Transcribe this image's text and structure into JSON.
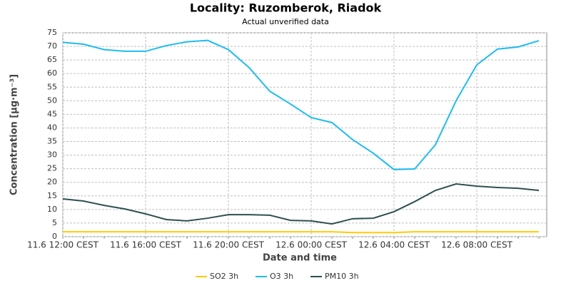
{
  "chart_data": {
    "type": "line",
    "title": "Locality: Ruzomberok, Riadok",
    "subtitle": "Actual unverified data",
    "x_label": "Date and time",
    "y_label": "Concentration [µg·m⁻³]",
    "categories": [
      "11.6 12:00 CEST",
      null,
      null,
      null,
      "11.6 16:00 CEST",
      null,
      null,
      null,
      "11.6 20:00 CEST",
      null,
      null,
      null,
      "12.6 00:00 CEST",
      null,
      null,
      null,
      "12.6 04:00 CEST",
      null,
      null,
      null,
      "12.6 08:00 CEST",
      null,
      null,
      null
    ],
    "series": [
      {
        "name": "SO2 3h",
        "color": "#ffcc00",
        "values": [
          1.8,
          1.8,
          1.8,
          1.8,
          1.8,
          1.8,
          1.8,
          1.8,
          1.8,
          1.8,
          1.8,
          1.8,
          1.8,
          1.8,
          1.5,
          1.5,
          1.5,
          1.8,
          1.8,
          1.8,
          1.8,
          1.8,
          1.8,
          1.8
        ]
      },
      {
        "name": "O3 3h",
        "color": "#1ebcf0",
        "values": [
          71.5,
          70.8,
          68.8,
          68.2,
          68.2,
          70.3,
          71.7,
          72.2,
          68.8,
          62.2,
          53.5,
          48.8,
          43.8,
          42,
          35.7,
          30.7,
          24.7,
          24.9,
          33.8,
          50,
          63.2,
          69,
          69.8,
          72.1
        ]
      },
      {
        "name": "PM10 3h",
        "color": "#2f4f4f",
        "values": [
          13.9,
          13.1,
          11.5,
          10.2,
          8.4,
          6.3,
          5.8,
          6.8,
          8.1,
          8.1,
          7.9,
          6.0,
          5.8,
          4.7,
          6.6,
          6.8,
          9.2,
          12.9,
          17,
          19.4,
          18.6,
          18.1,
          17.8,
          17
        ]
      }
    ],
    "ylim": [
      0,
      75
    ],
    "yticks": [
      0,
      5,
      10,
      15,
      20,
      25,
      30,
      35,
      40,
      45,
      50,
      55,
      60,
      65,
      70,
      75
    ],
    "grid": true,
    "legend": "bottom"
  }
}
